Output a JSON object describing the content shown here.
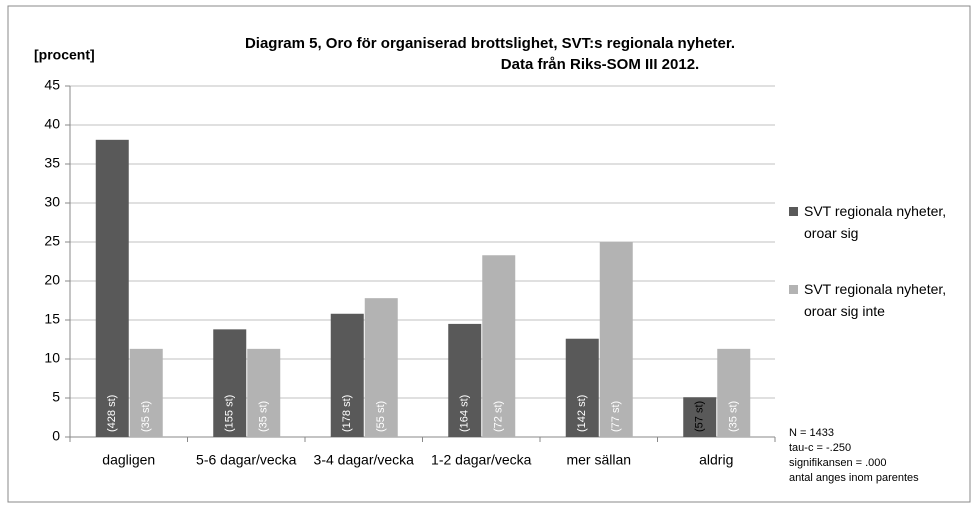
{
  "chart_data": {
    "type": "bar",
    "title": [
      "Diagram 5, Oro för organiserad brottslighet, SVT:s regionala nyheter.",
      "Data från Riks-SOM III 2012."
    ],
    "y_label": "[procent]",
    "categories": [
      "dagligen",
      "5-6 dagar/vecka",
      "3-4 dagar/vecka",
      "1-2 dagar/vecka",
      "mer sällan",
      "aldrig"
    ],
    "series": [
      {
        "name": "SVT regionala nyheter, oroar sig",
        "color": "#595959",
        "values": [
          38.1,
          13.8,
          15.8,
          14.5,
          12.6,
          5.1
        ],
        "bar_notes": [
          "(428 st)",
          "(155 st)",
          "(178 st)",
          "(164 st)",
          "(142 st)",
          "(57 st)"
        ]
      },
      {
        "name": "SVT regionala nyheter, oroar sig inte",
        "color": "#b3b3b3",
        "values": [
          11.3,
          11.3,
          17.8,
          23.3,
          25.0,
          11.3
        ],
        "bar_notes": [
          "(35 st)",
          "(35 st)",
          "(55 st)",
          "(72 st)",
          "(77 st)",
          "(35 st)"
        ]
      }
    ],
    "ylim": [
      0,
      45
    ],
    "yticks": [
      0,
      5,
      10,
      15,
      20,
      25,
      30,
      35,
      40,
      45
    ],
    "grid": true,
    "legend": "right",
    "notes": [
      "N = 1433",
      "tau-c = -.250",
      "signifikansen = .000",
      "antal anges inom parentes"
    ]
  }
}
